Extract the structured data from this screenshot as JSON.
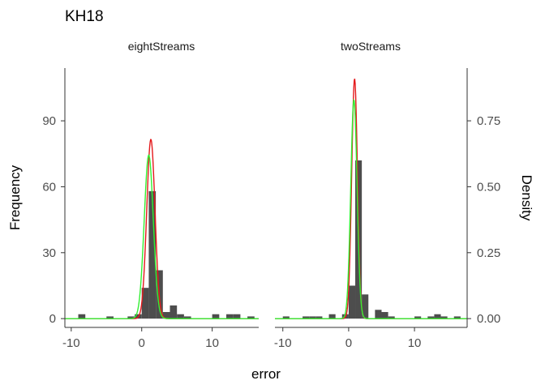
{
  "chart_data": {
    "type": "histogram",
    "title": "KH18",
    "xlabel": "error",
    "ylabel_left": "Frequency",
    "ylabel_right": "Density",
    "y_left_ticks": [
      0,
      30,
      60,
      90
    ],
    "y_right_ticks": [
      "0.00",
      "0.25",
      "0.50",
      "0.75"
    ],
    "x_ticks": [
      -10,
      0,
      10
    ],
    "y_left_range": [
      -4,
      114
    ],
    "density_per_count": 0.008333,
    "grid": false,
    "line_colors": {
      "red": "#e41a1c",
      "green": "#33ee33",
      "bar": "#4d4d4d"
    },
    "panels": [
      {
        "label": "eightStreams",
        "xlim": [
          -10.9,
          16.6
        ],
        "bin_width": 1,
        "bins": [
          {
            "x": -9,
            "count": 2
          },
          {
            "x": -5,
            "count": 1
          },
          {
            "x": -2,
            "count": 1
          },
          {
            "x": -1,
            "count": 2
          },
          {
            "x": 0,
            "count": 14
          },
          {
            "x": 1,
            "count": 58
          },
          {
            "x": 2,
            "count": 22
          },
          {
            "x": 3,
            "count": 3
          },
          {
            "x": 4,
            "count": 6
          },
          {
            "x": 5,
            "count": 2
          },
          {
            "x": 6,
            "count": 1
          },
          {
            "x": 10,
            "count": 2
          },
          {
            "x": 12,
            "count": 2
          },
          {
            "x": 13,
            "count": 2
          },
          {
            "x": 15,
            "count": 1
          }
        ],
        "curves": [
          {
            "color": "red",
            "mean": 1.3,
            "peak_density": 0.68
          },
          {
            "color": "green",
            "mean": 1.0,
            "peak_density": 0.62
          }
        ]
      },
      {
        "label": "twoStreams",
        "xlim": [
          -11.2,
          18.0
        ],
        "bin_width": 1,
        "bins": [
          {
            "x": -10,
            "count": 1
          },
          {
            "x": -7,
            "count": 1
          },
          {
            "x": -6,
            "count": 1
          },
          {
            "x": -5,
            "count": 1
          },
          {
            "x": -3,
            "count": 2
          },
          {
            "x": -1,
            "count": 2
          },
          {
            "x": 0,
            "count": 15
          },
          {
            "x": 1,
            "count": 72
          },
          {
            "x": 2,
            "count": 11
          },
          {
            "x": 4,
            "count": 4
          },
          {
            "x": 5,
            "count": 3
          },
          {
            "x": 6,
            "count": 1
          },
          {
            "x": 10,
            "count": 1
          },
          {
            "x": 12,
            "count": 1
          },
          {
            "x": 13,
            "count": 2
          },
          {
            "x": 14,
            "count": 1
          },
          {
            "x": 16,
            "count": 1
          }
        ],
        "curves": [
          {
            "color": "red",
            "mean": 0.9,
            "peak_density": 0.91
          },
          {
            "color": "green",
            "mean": 0.8,
            "peak_density": 0.83
          }
        ]
      }
    ]
  }
}
